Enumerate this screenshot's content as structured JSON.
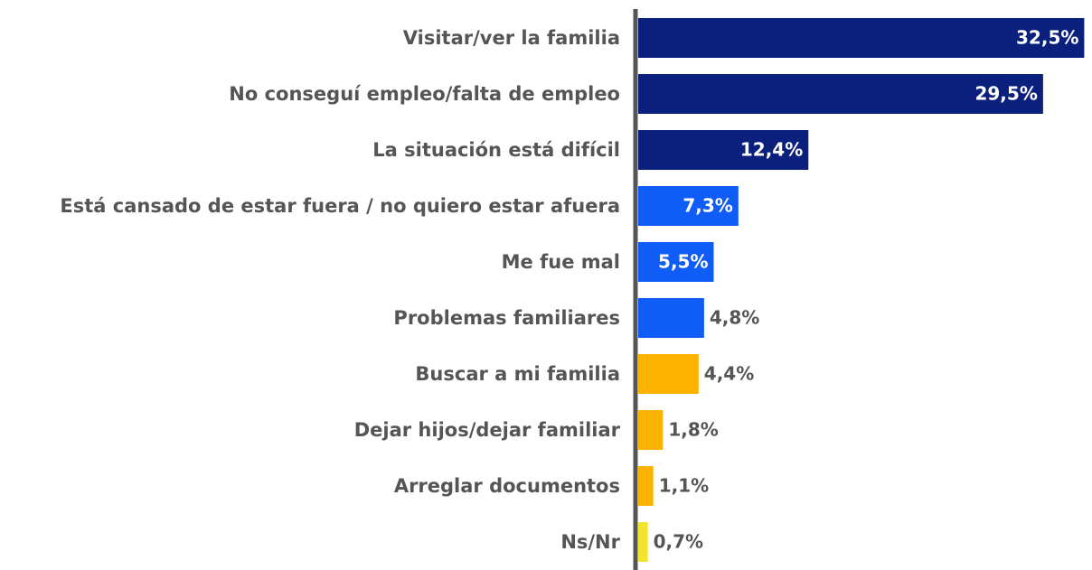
{
  "chart_data": {
    "type": "barh",
    "categories": [
      "Visitar/ver la familia",
      "No conseguí empleo/falta de empleo",
      "La situación está difícil",
      "Está cansado de estar fuera / no quiero estar afuera",
      "Me fue mal",
      "Problemas familiares",
      "Buscar a mi familia",
      "Dejar hijos/dejar familiar",
      "Arreglar documentos",
      "Ns/Nr"
    ],
    "values": [
      32.5,
      29.5,
      12.4,
      7.3,
      5.5,
      4.8,
      4.4,
      1.8,
      1.1,
      0.7
    ],
    "value_labels": [
      "32,5%",
      "29,5%",
      "12,4%",
      "7,3%",
      "5,5%",
      "4,8%",
      "4,4%",
      "1,8%",
      "1,1%",
      "0,7%"
    ],
    "colors": [
      "#0b1f7c",
      "#0b1f7c",
      "#0b1f7c",
      "#0f5cf6",
      "#0f5cf6",
      "#0f5cf6",
      "#fbb200",
      "#fbb200",
      "#fbb200",
      "#f3e32a"
    ],
    "xlim": [
      0,
      33
    ]
  }
}
